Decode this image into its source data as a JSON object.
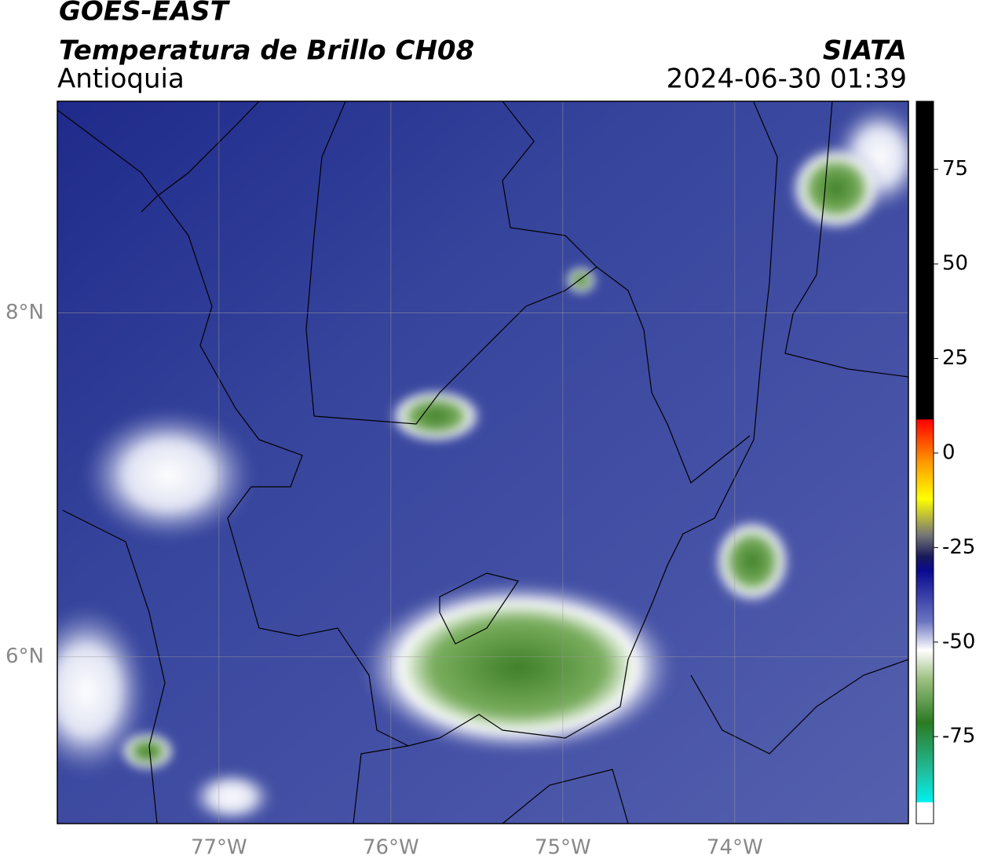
{
  "title": "GOES-EAST",
  "subtitle": "Temperatura de Brillo CH08",
  "region": "Antioquia",
  "agency": "SIATA",
  "timestamp": "2024-06-30 01:39",
  "map": {
    "xlim": [
      -77.94,
      -72.99
    ],
    "ylim": [
      5.03,
      9.23
    ],
    "xticks": [
      {
        "value": -77,
        "label": "77°W"
      },
      {
        "value": -76,
        "label": "76°W"
      },
      {
        "value": -75,
        "label": "75°W"
      },
      {
        "value": -74,
        "label": "74°W"
      }
    ],
    "yticks": [
      {
        "value": 8,
        "label": "8°N"
      },
      {
        "value": 6,
        "label": "6°N"
      }
    ],
    "grid": true
  },
  "colorbar": {
    "clim": [
      -98,
      93
    ],
    "ticks": [
      75,
      50,
      25,
      0,
      -25,
      -50,
      -75
    ]
  }
}
